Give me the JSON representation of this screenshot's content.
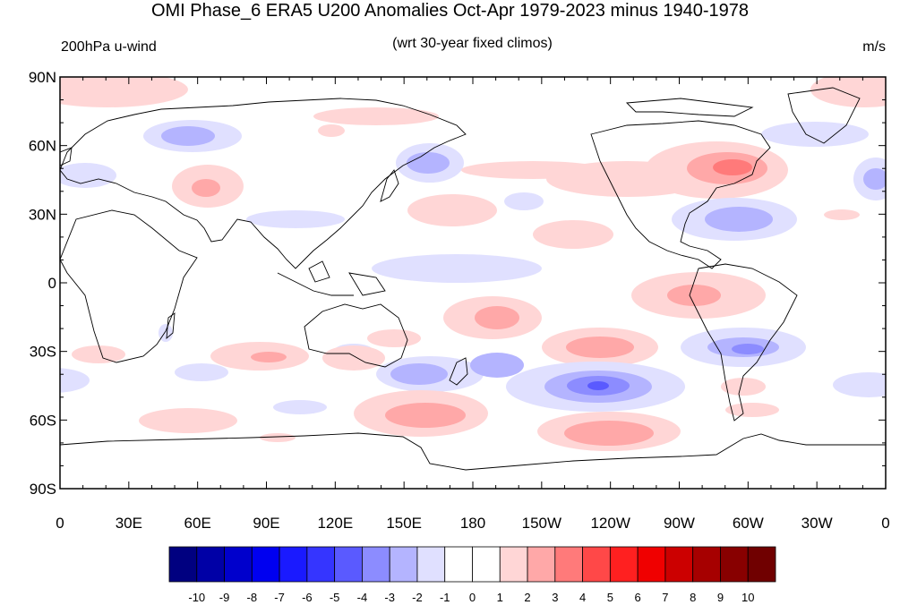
{
  "title": "OMI Phase_6 ERA5 U200 Anomalies Oct-Apr 1979-2023 minus 1940-1978",
  "left_label": "200hPa u-wind",
  "center_label": "(wrt 30-year fixed climos)",
  "units": "m/s",
  "lat_ticks": [
    "90N",
    "60N",
    "30N",
    "0",
    "30S",
    "60S",
    "90S"
  ],
  "lon_ticks": [
    "0",
    "30E",
    "60E",
    "90E",
    "120E",
    "150E",
    "180",
    "150W",
    "120W",
    "90W",
    "60W",
    "30W",
    "0"
  ],
  "colorbar": {
    "labels": [
      "-10",
      "-9",
      "-8",
      "-7",
      "-6",
      "-5",
      "-4",
      "-3",
      "-2",
      "-1",
      "0",
      "1",
      "2",
      "3",
      "4",
      "5",
      "6",
      "7",
      "8",
      "9",
      "10"
    ],
    "colors": [
      "#000080",
      "#0000a6",
      "#0000cc",
      "#0000f0",
      "#1a1aff",
      "#3535ff",
      "#5a5aff",
      "#8c8cff",
      "#b4b4ff",
      "#e0e0ff",
      "#ffffff",
      "#ffffff",
      "#ffd6d6",
      "#ffa8a8",
      "#ff7a7a",
      "#ff4848",
      "#ff2020",
      "#f00000",
      "#cc0000",
      "#a60000",
      "#880000",
      "#700000"
    ]
  }
}
